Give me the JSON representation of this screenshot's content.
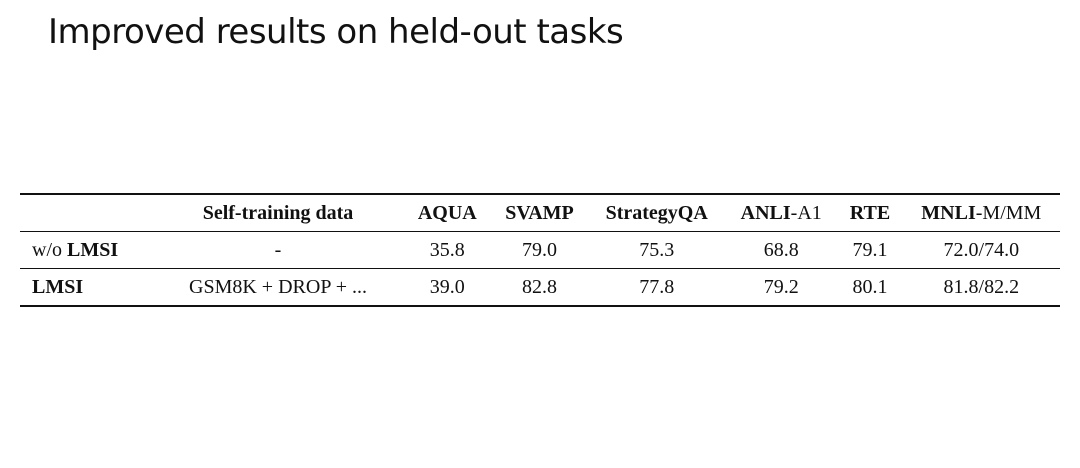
{
  "title": "Improved results on held-out tasks",
  "table": {
    "headers": [
      {
        "bold": "",
        "normal": ""
      },
      {
        "bold": "Self-training data",
        "normal": ""
      },
      {
        "bold": "AQUA",
        "normal": ""
      },
      {
        "bold": "SVAMP",
        "normal": ""
      },
      {
        "bold": "StrategyQA",
        "normal": ""
      },
      {
        "bold": "ANLI",
        "normal": "-A1"
      },
      {
        "bold": "RTE",
        "normal": ""
      },
      {
        "bold": "MNLI",
        "normal": "-M/MM"
      }
    ],
    "rows": [
      {
        "method_prefix": "w/o ",
        "method_bold": "LMSI",
        "cells": [
          "-",
          "35.8",
          "79.0",
          "75.3",
          "68.8",
          "79.1",
          "72.0/74.0"
        ]
      },
      {
        "method_prefix": "",
        "method_bold": "LMSI",
        "cells": [
          "GSM8K + DROP + ...",
          "39.0",
          "82.8",
          "77.8",
          "79.2",
          "80.1",
          "81.8/82.2"
        ]
      }
    ]
  }
}
